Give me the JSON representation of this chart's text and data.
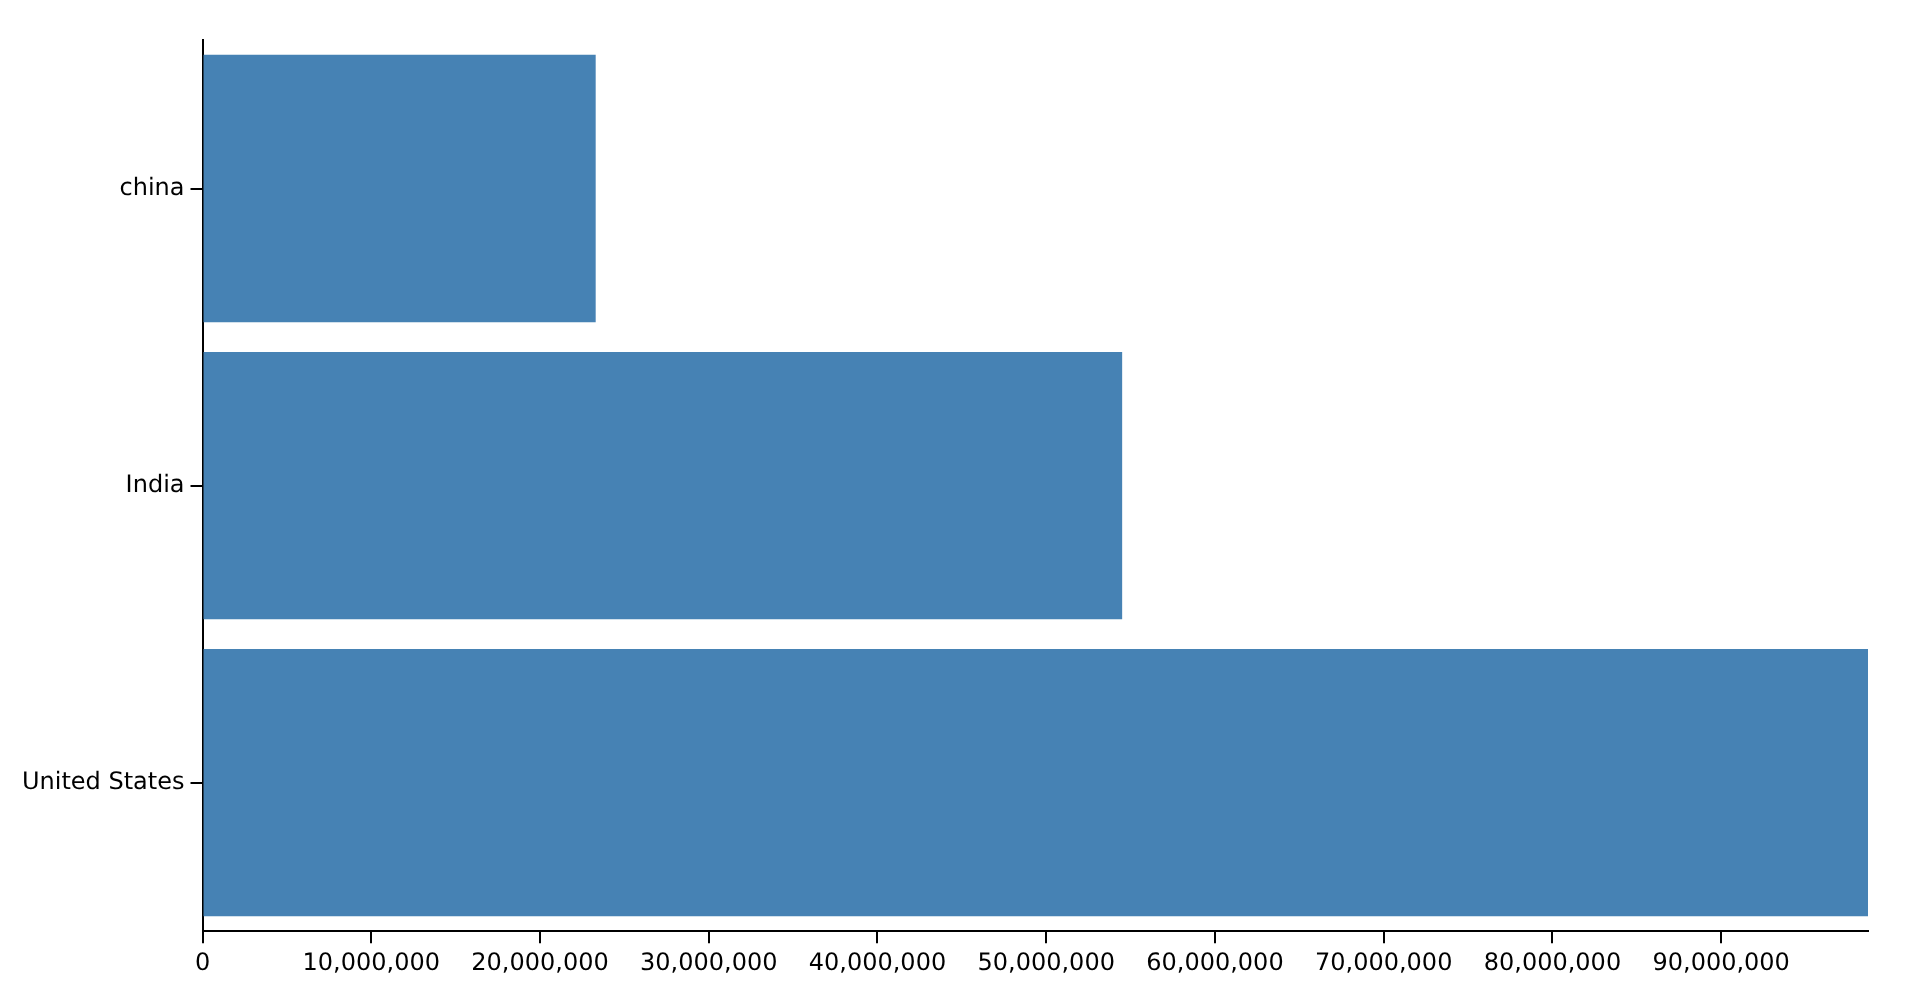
{
  "chart_data": {
    "type": "bar",
    "orientation": "horizontal",
    "categories": [
      "china",
      "India",
      "United States"
    ],
    "values": [
      23300000,
      54500000,
      98700000
    ],
    "color": "#4682b4",
    "xlim": [
      0,
      98700000
    ],
    "xticks": [
      0,
      {
        "value": 10000000,
        "label": "10,000,000"
      },
      {
        "value": 20000000,
        "label": "20,000,000"
      },
      {
        "value": 30000000,
        "label": "30,000,000"
      },
      {
        "value": 40000000,
        "label": "40,000,000"
      },
      {
        "value": 50000000,
        "label": "50,000,000"
      },
      {
        "value": 60000000,
        "label": "60,000,000"
      },
      {
        "value": 70000000,
        "label": "70,000,000"
      },
      {
        "value": 80000000,
        "label": "80,000,000"
      },
      {
        "value": 90000000,
        "label": "90,000,000"
      }
    ],
    "grid": false,
    "legend": false
  }
}
